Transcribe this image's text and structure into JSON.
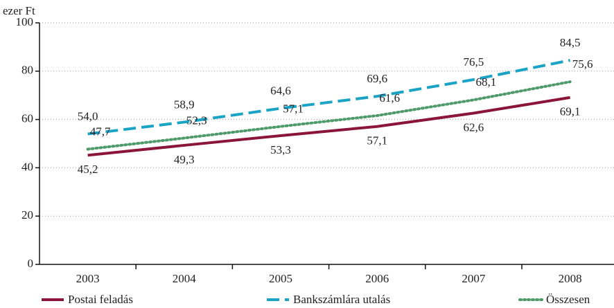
{
  "chart_data": {
    "type": "line",
    "y_label": "ezer Ft",
    "categories": [
      "2003",
      "2004",
      "2005",
      "2006",
      "2007",
      "2008"
    ],
    "series": [
      {
        "name": "Postai feladás",
        "color": "#8b1538",
        "style": "solid",
        "values": [
          45.2,
          49.3,
          53.3,
          57.1,
          62.6,
          69.1
        ],
        "value_labels": [
          "45,2",
          "49,3",
          "53,3",
          "57,1",
          "62,6",
          "69,1"
        ]
      },
      {
        "name": "Bankszámlára utalás",
        "color": "#1ba3c6",
        "style": "dashed",
        "values": [
          54.0,
          58.9,
          64.6,
          69.6,
          76.5,
          84.5
        ],
        "value_labels": [
          "54,0",
          "58,9",
          "64,6",
          "69,6",
          "76,5",
          "84,5"
        ]
      },
      {
        "name": "Összesen",
        "color": "#4e9a6a",
        "style": "dotted",
        "values": [
          47.7,
          52.3,
          57.1,
          61.6,
          68.1,
          75.6
        ],
        "value_labels": [
          "47,7",
          "52,3",
          "57,1",
          "61,6",
          "68,1",
          "75,6"
        ]
      }
    ],
    "ylim": [
      0,
      100
    ],
    "yticks": [
      0,
      20,
      40,
      60,
      80,
      100
    ],
    "grid": true
  }
}
